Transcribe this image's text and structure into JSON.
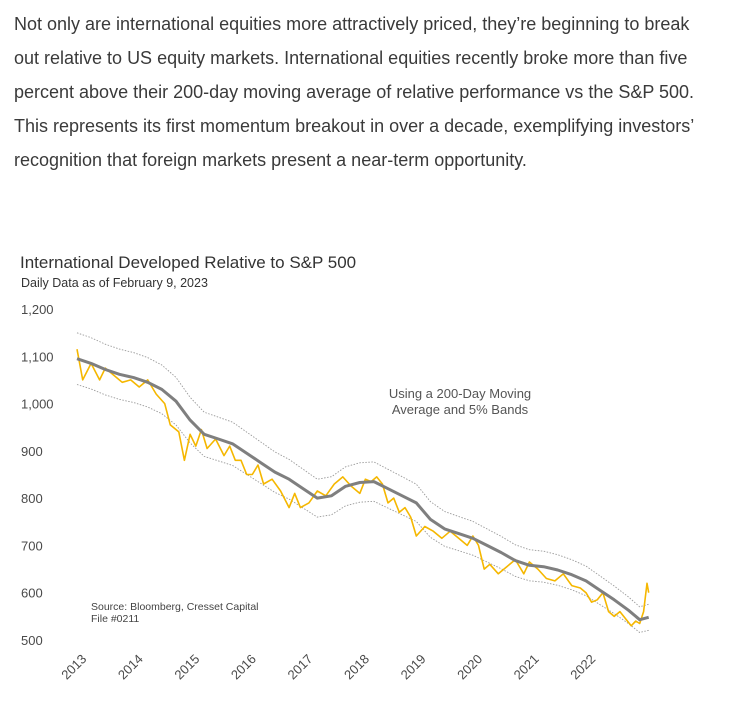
{
  "article": {
    "paragraph": "Not only are international equities more attractively priced, they’re beginning to break out relative to US equity markets. International equities recently broke more than five percent above their 200-day moving average of relative performance vs the S&P 500. This represents its first momentum breakout in over a decade, exemplifying investors’ recognition that foreign markets present a near-term opportunity."
  },
  "chart_data": {
    "type": "line",
    "title": "International Developed Relative to S&P 500",
    "subtitle": "Daily Data as of February 9, 2023",
    "annotation": [
      "Using a 200-Day Moving",
      "Average and 5% Bands"
    ],
    "source": [
      "Source:  Bloomberg, Cresset Capital",
      "File #0211"
    ],
    "ylim": [
      500,
      1200
    ],
    "xlim": [
      2013.0,
      2023.15
    ],
    "y_ticks": [
      {
        "value": 500,
        "label": "500"
      },
      {
        "value": 600,
        "label": "600"
      },
      {
        "value": 700,
        "label": "700"
      },
      {
        "value": 800,
        "label": "800"
      },
      {
        "value": 900,
        "label": "900"
      },
      {
        "value": 1000,
        "label": "1,000"
      },
      {
        "value": 1100,
        "label": "1,100"
      },
      {
        "value": 1200,
        "label": "1,200"
      }
    ],
    "x_ticks": [
      "2013",
      "2014",
      "2015",
      "2016",
      "2017",
      "2018",
      "2019",
      "2020",
      "2021",
      "2022"
    ],
    "band_pct": 5,
    "series": [
      {
        "color": "#F5B700",
        "x": [
          2013.0,
          2013.1,
          2013.25,
          2013.4,
          2013.5,
          2013.65,
          2013.8,
          2013.95,
          2014.1,
          2014.25,
          2014.4,
          2014.55,
          2014.65,
          2014.8,
          2014.9,
          2015.0,
          2015.1,
          2015.2,
          2015.3,
          2015.45,
          2015.6,
          2015.7,
          2015.8,
          2015.9,
          2016.0,
          2016.1,
          2016.2,
          2016.3,
          2016.45,
          2016.6,
          2016.75,
          2016.85,
          2016.95,
          2017.1,
          2017.25,
          2017.4,
          2017.55,
          2017.7,
          2017.85,
          2018.0,
          2018.1,
          2018.2,
          2018.3,
          2018.4,
          2018.5,
          2018.6,
          2018.7,
          2018.8,
          2018.9,
          2019.0,
          2019.15,
          2019.3,
          2019.45,
          2019.6,
          2019.75,
          2019.9,
          2020.0,
          2020.1,
          2020.2,
          2020.3,
          2020.45,
          2020.6,
          2020.75,
          2020.9,
          2021.0,
          2021.15,
          2021.3,
          2021.45,
          2021.6,
          2021.75,
          2021.9,
          2022.0,
          2022.1,
          2022.2,
          2022.3,
          2022.4,
          2022.5,
          2022.6,
          2022.7,
          2022.8,
          2022.88,
          2022.95,
          2023.02,
          2023.08,
          2023.11
        ],
        "values": [
          1115,
          1050,
          1085,
          1050,
          1075,
          1060,
          1045,
          1050,
          1035,
          1050,
          1020,
          1000,
          955,
          940,
          880,
          935,
          910,
          945,
          905,
          925,
          890,
          910,
          880,
          880,
          850,
          850,
          870,
          830,
          840,
          815,
          780,
          810,
          780,
          790,
          815,
          805,
          830,
          845,
          825,
          810,
          840,
          835,
          845,
          830,
          790,
          800,
          770,
          780,
          760,
          720,
          740,
          730,
          715,
          730,
          715,
          700,
          720,
          700,
          650,
          660,
          640,
          655,
          670,
          640,
          665,
          650,
          630,
          625,
          640,
          615,
          610,
          600,
          580,
          585,
          600,
          560,
          550,
          560,
          545,
          530,
          540,
          535,
          560,
          620,
          600
        ]
      },
      {
        "name": "200-Day Moving Average",
        "color": "#7f7f7f",
        "x": [
          2013.0,
          2013.25,
          2013.5,
          2013.75,
          2014.0,
          2014.25,
          2014.5,
          2014.75,
          2015.0,
          2015.25,
          2015.5,
          2015.75,
          2016.0,
          2016.25,
          2016.5,
          2016.75,
          2017.0,
          2017.25,
          2017.5,
          2017.75,
          2018.0,
          2018.25,
          2018.5,
          2018.75,
          2019.0,
          2019.25,
          2019.5,
          2019.75,
          2020.0,
          2020.25,
          2020.5,
          2020.75,
          2021.0,
          2021.25,
          2021.5,
          2021.75,
          2022.0,
          2022.25,
          2022.5,
          2022.75,
          2022.95,
          2023.11
        ],
        "values": [
          1095,
          1085,
          1072,
          1062,
          1055,
          1045,
          1030,
          1005,
          965,
          935,
          925,
          915,
          895,
          875,
          855,
          840,
          820,
          800,
          805,
          825,
          833,
          835,
          820,
          805,
          790,
          755,
          735,
          725,
          715,
          700,
          685,
          668,
          658,
          655,
          648,
          638,
          625,
          605,
          585,
          563,
          543,
          548
        ]
      }
    ]
  }
}
